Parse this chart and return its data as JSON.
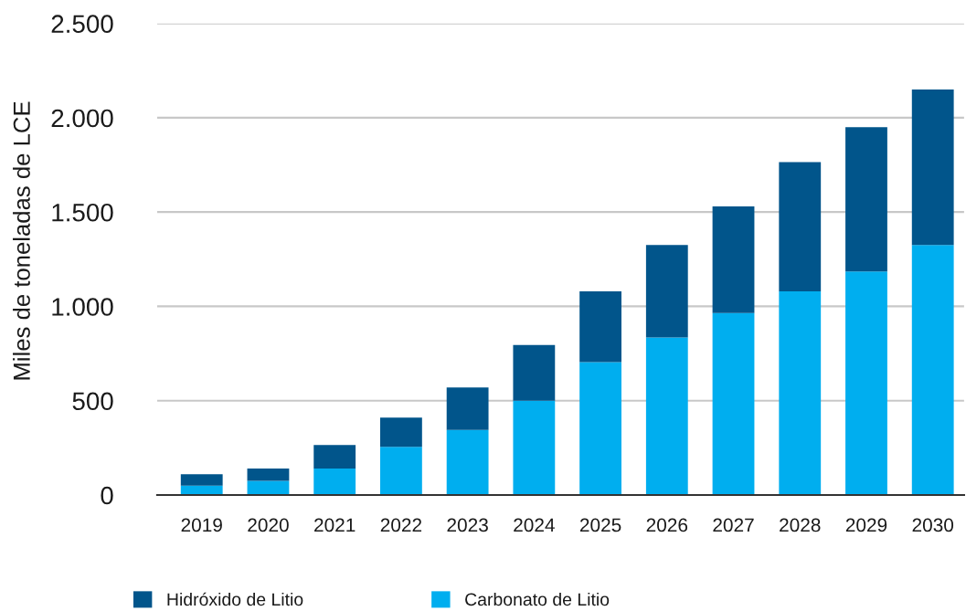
{
  "chart_data": {
    "type": "bar",
    "stacked": true,
    "ylabel": "Miles de toneladas de LCE",
    "categories": [
      "2019",
      "2020",
      "2021",
      "2022",
      "2023",
      "2024",
      "2025",
      "2026",
      "2027",
      "2028",
      "2029",
      "2030"
    ],
    "series": [
      {
        "name": "Carbonato de Litio",
        "color": "#00aeef",
        "values": [
          50,
          75,
          140,
          255,
          345,
          500,
          705,
          835,
          965,
          1080,
          1185,
          1325
        ]
      },
      {
        "name": "Hidróxido de Litio",
        "color": "#01558b",
        "values": [
          60,
          65,
          125,
          155,
          225,
          295,
          375,
          490,
          565,
          685,
          765,
          825
        ]
      }
    ],
    "ylim": [
      0,
      2500
    ],
    "yticks": [
      0,
      500,
      {
        "value": 1000,
        "label": "1.000"
      },
      {
        "value": 1500,
        "label": "1.500"
      },
      {
        "value": 2000,
        "label": "2.000"
      },
      {
        "value": 2500,
        "label": "2.500"
      }
    ],
    "grid": "y",
    "legend": "bottom"
  }
}
